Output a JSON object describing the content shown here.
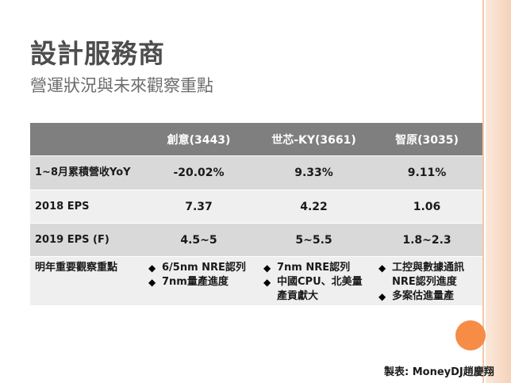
{
  "title": "設計服務商",
  "subtitle": "營運狀況與未來觀察重點",
  "table": {
    "headers": [
      "",
      "創意(3443)",
      "世芯-KY(3661)",
      "智原(3035)"
    ],
    "rows": [
      {
        "label": "1~8月累積營收YoY",
        "values": [
          "-20.02%",
          "9.33%",
          "9.11%"
        ]
      },
      {
        "label": "2018 EPS",
        "values": [
          "7.37",
          "4.22",
          "1.06"
        ]
      },
      {
        "label": "2019 EPS (F)",
        "values": [
          "4.5~5",
          "5~5.5",
          "1.8~2.3"
        ]
      }
    ],
    "watch_label": "明年重要觀察重點",
    "watch_items": [
      [
        "6/5nm NRE認列",
        "7nm量產進度"
      ],
      [
        "7nm NRE認列",
        "中國CPU、北美量產貢獻大"
      ],
      [
        "工控與數據通訊NRE認列進度",
        "多案估進量產"
      ]
    ]
  },
  "bullet_glyph": "◆",
  "credit": "製表: MoneyDJ趙慶翔",
  "colors": {
    "header_bg": "#7f7f7f",
    "row_dark": "#d9d9d9",
    "row_light": "#efefef",
    "accent_orange": "#f68c46",
    "side_band": "#f6d2b8"
  }
}
